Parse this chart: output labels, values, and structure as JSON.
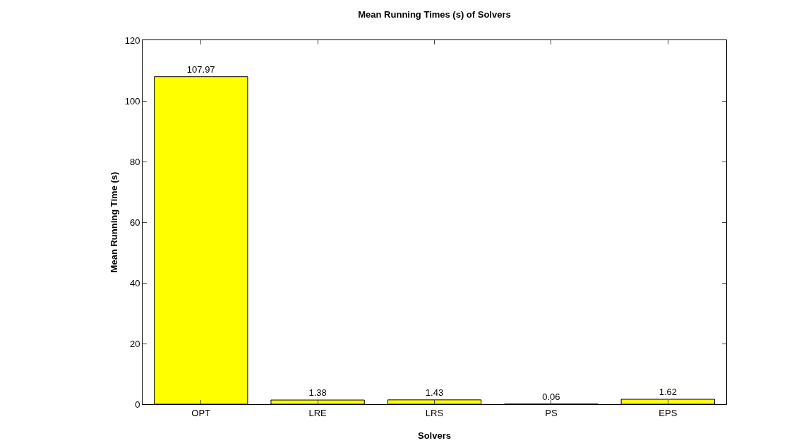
{
  "chart_data": {
    "type": "bar",
    "title": "Mean Running Times (s) of Solvers",
    "xlabel": "Solvers",
    "ylabel": "Mean Running Time (s)",
    "categories": [
      "OPT",
      "LRE",
      "LRS",
      "PS",
      "EPS"
    ],
    "values": [
      107.97,
      1.38,
      1.43,
      0.06,
      1.62
    ],
    "color": "#ffff00",
    "ylim": [
      0,
      120
    ],
    "yticks": [
      0,
      20,
      40,
      60,
      80,
      100,
      120
    ],
    "grid": false,
    "data_labels": true
  }
}
